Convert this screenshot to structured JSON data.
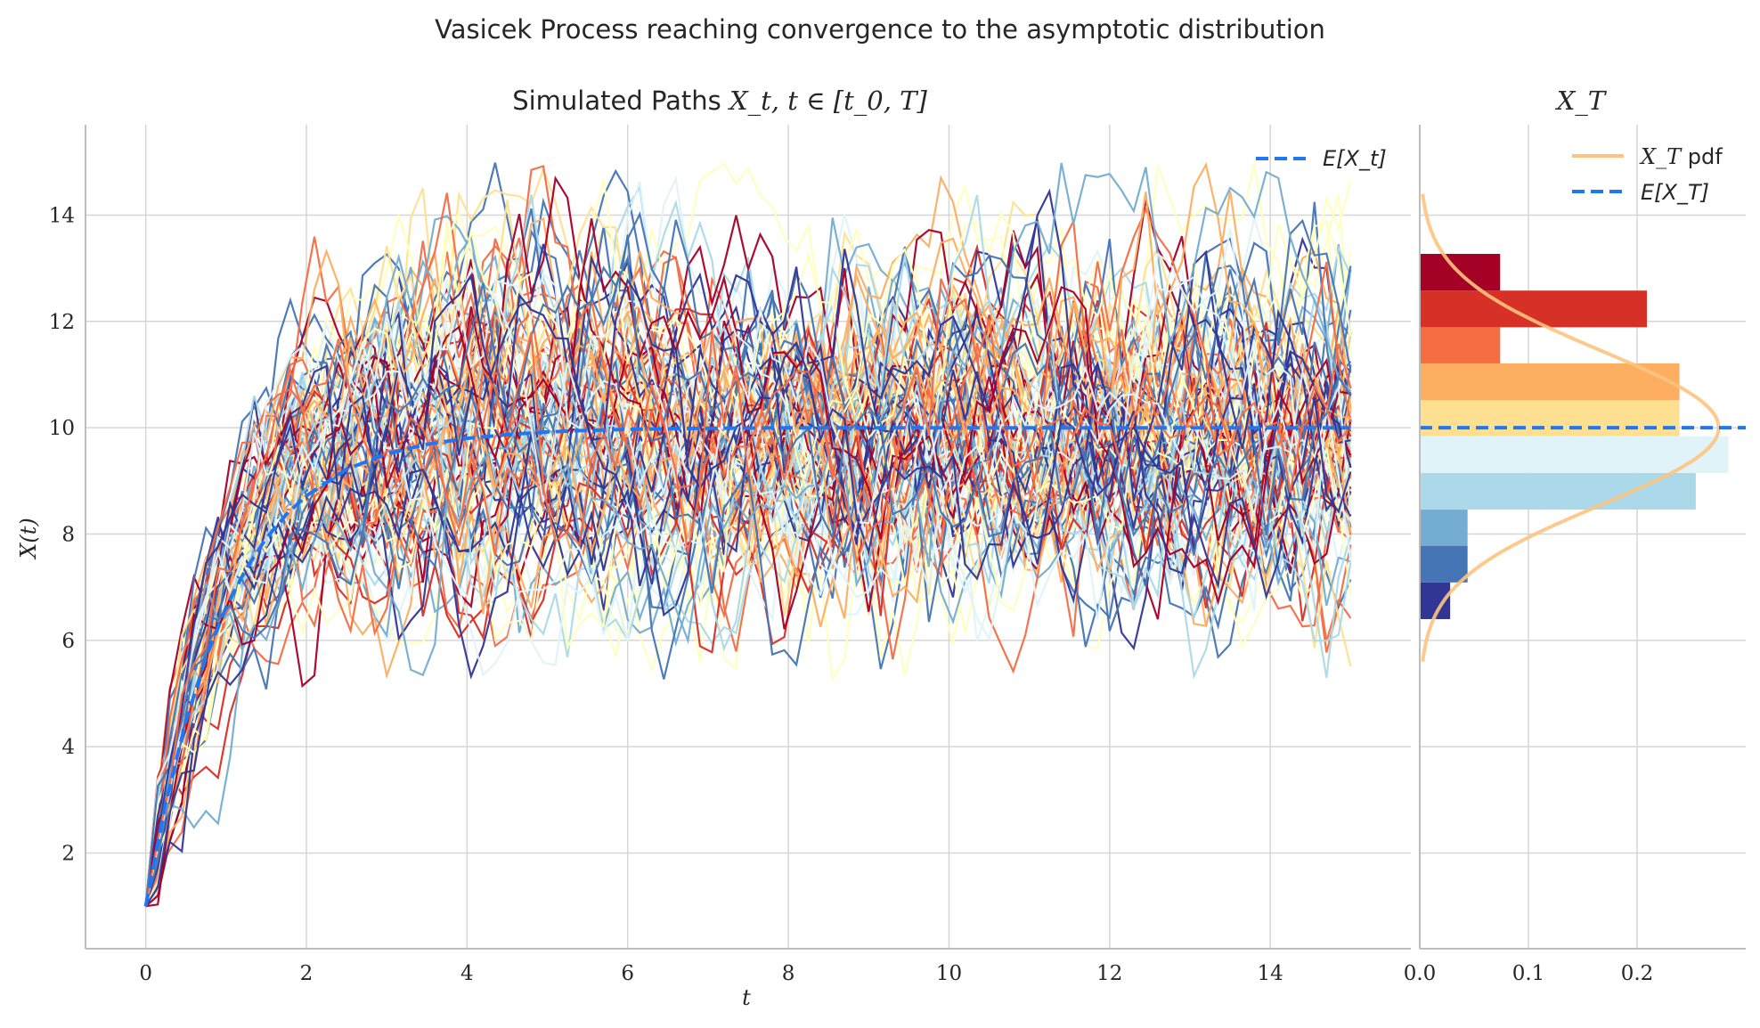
{
  "figure": {
    "suptitle": "Vasicek Process reaching convergence to the asymptotic distribution"
  },
  "chart_data": [
    {
      "type": "line",
      "title_text": "Simulated Paths ",
      "title_math": "X_t, t ∈ [t_0, T]",
      "xlabel": "t",
      "ylabel": "X(t)",
      "xlim": [
        -0.75,
        15.75
      ],
      "ylim": [
        0.2,
        15.7
      ],
      "xticks": [
        0,
        2,
        4,
        6,
        8,
        10,
        12,
        14
      ],
      "yticks": [
        2,
        4,
        6,
        8,
        10,
        12,
        14
      ],
      "grid": true,
      "legend_placement": "top-right",
      "colormap": "RdYlBu_r",
      "paths_summary": {
        "count": 100,
        "t_start": 0,
        "t_end": 15,
        "x0": 1,
        "long_run_mean": 10,
        "min_value": 5.25,
        "max_value": 15.0
      },
      "expected_value": {
        "label": "E[X_t]",
        "t": [
          0,
          0.25,
          0.5,
          0.75,
          1,
          1.25,
          1.5,
          1.75,
          2,
          2.5,
          3,
          3.5,
          4,
          4.5,
          5,
          5.5,
          6,
          7,
          8,
          10,
          12,
          15
        ],
        "values": [
          1.0,
          2.95,
          4.48,
          5.68,
          6.62,
          7.35,
          7.92,
          8.37,
          8.72,
          9.22,
          9.51,
          9.69,
          9.8,
          9.87,
          9.92,
          9.95,
          9.97,
          9.99,
          10.0,
          10.0,
          10.0,
          10.0
        ],
        "color": "#1f77f4",
        "style": "dashed"
      }
    },
    {
      "type": "bar",
      "orientation": "horizontal",
      "title_math": "X_T",
      "xlim": [
        0,
        0.3
      ],
      "xticks": [
        0.0,
        0.1,
        0.2
      ],
      "xtick_labels": [
        "0.0",
        "0.1",
        "0.2"
      ],
      "ylim": [
        0.2,
        15.7
      ],
      "grid": true,
      "legend_placement": "top-right",
      "histogram": {
        "bin_edges": [
          6.4,
          7.09,
          7.78,
          8.46,
          9.15,
          9.84,
          10.52,
          11.21,
          11.89,
          12.58,
          13.27
        ],
        "density": [
          0.028,
          0.044,
          0.044,
          0.254,
          0.284,
          0.239,
          0.239,
          0.074,
          0.209,
          0.074
        ],
        "colors": [
          "#313695",
          "#4575b4",
          "#74add1",
          "#abd9e9",
          "#e0f3f8",
          "#fee090",
          "#fdae61",
          "#f46d43",
          "#d73027",
          "#a50026"
        ]
      },
      "pdf": {
        "label_math": "X_T",
        "label_text": " pdf",
        "mean": 10.0,
        "std": 1.45,
        "y_range": [
          5.6,
          14.4
        ],
        "color": "#fdc47e"
      },
      "expected_value": {
        "label": "E[X_T]",
        "value": 10,
        "color": "#1f77f4",
        "style": "dashed"
      }
    }
  ]
}
